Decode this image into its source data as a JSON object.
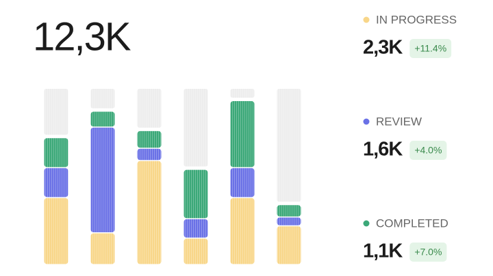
{
  "chart_data": {
    "type": "bar",
    "stacked": true,
    "total": "12,3K",
    "categories": [
      null,
      null,
      null,
      null,
      null,
      null
    ],
    "ylim": [
      0,
      100
    ],
    "series": [
      {
        "name": "IN PROGRESS",
        "color": "#f8d689",
        "total": "2,3K",
        "change": "+11.4%",
        "values": [
          38,
          18,
          59,
          15,
          38,
          22
        ]
      },
      {
        "name": "REVIEW",
        "color": "#6a71e6",
        "total": "1,6K",
        "change": "+4.0%",
        "values": [
          17,
          60,
          7,
          11,
          17,
          5
        ]
      },
      {
        "name": "COMPLETED",
        "color": "#3ba878",
        "total": "1,1K",
        "change": "+7.0%",
        "values": [
          17,
          9,
          10,
          28,
          38,
          7
        ]
      }
    ]
  }
}
